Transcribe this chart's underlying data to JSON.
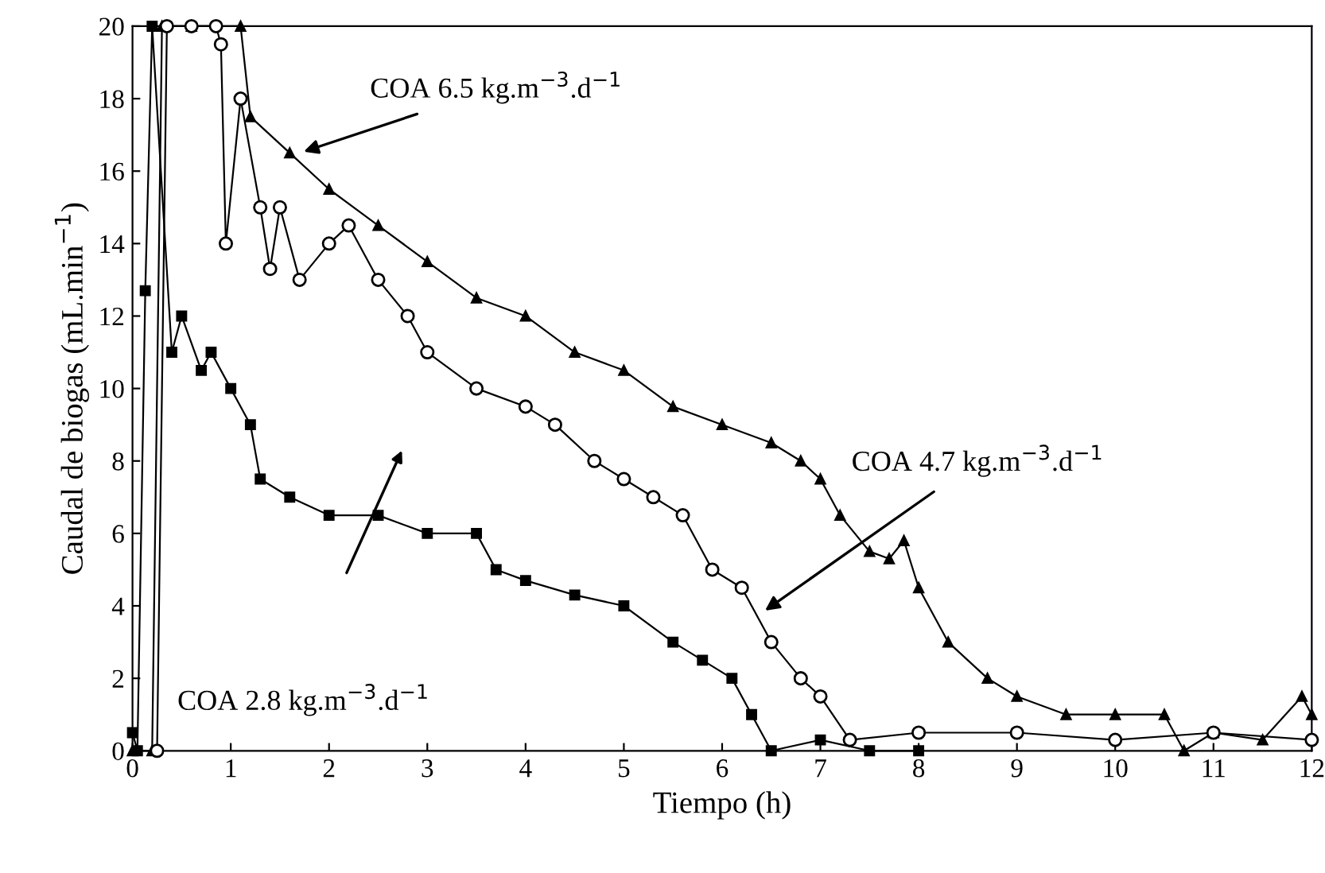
{
  "chart_data": {
    "type": "line",
    "xlabel": "Tiempo (h)",
    "ylabel": "Caudal de biogas (mL.min$^{−1}$)",
    "xlim": [
      0,
      12
    ],
    "ylim": [
      0,
      20
    ],
    "xticks": [
      0,
      1,
      2,
      3,
      4,
      5,
      6,
      7,
      8,
      9,
      10,
      11,
      12
    ],
    "yticks": [
      0,
      2,
      4,
      6,
      8,
      10,
      12,
      14,
      16,
      18,
      20
    ],
    "grid": false,
    "legend": false,
    "line_style": "solid",
    "series": [
      {
        "color": "#000000",
        "marker": "triangle",
        "x": [
          0,
          0.2,
          0.3,
          0.6,
          1.1,
          1.2,
          1.6,
          2,
          2.5,
          3,
          3.5,
          4,
          4.5,
          5,
          5.5,
          6,
          6.5,
          6.8,
          7,
          7.2,
          7.5,
          7.7,
          7.85,
          8,
          8.3,
          8.7,
          9,
          9.5,
          10,
          10.5,
          10.7,
          11,
          11.5,
          11.9,
          12
        ],
        "values": [
          0,
          0,
          20,
          20,
          20,
          17.5,
          16.5,
          15.5,
          14.5,
          13.5,
          12.5,
          12,
          11,
          10.5,
          9.5,
          9,
          8.5,
          8,
          7.5,
          6.5,
          5.5,
          5.3,
          5.8,
          4.5,
          3,
          2,
          1.5,
          1,
          1,
          1,
          0,
          0.5,
          0.3,
          1.5,
          1
        ]
      },
      {
        "color": "#000000",
        "marker": "circle",
        "x": [
          0.25,
          0.35,
          0.6,
          0.85,
          0.9,
          0.95,
          1.1,
          1.3,
          1.4,
          1.5,
          1.7,
          2,
          2.2,
          2.5,
          2.8,
          3,
          3.5,
          4,
          4.3,
          4.7,
          5,
          5.3,
          5.6,
          5.9,
          6.2,
          6.5,
          6.8,
          7,
          7.3,
          8,
          9,
          10,
          11,
          12
        ],
        "values": [
          0,
          20,
          20,
          20,
          19.5,
          14,
          18,
          15,
          13.3,
          15,
          13,
          14,
          14.5,
          13,
          12,
          11,
          10,
          9.5,
          9,
          8,
          7.5,
          7,
          6.5,
          5,
          4.5,
          3,
          2,
          1.5,
          0.3,
          0.5,
          0.5,
          0.3,
          0.5,
          0.3
        ]
      },
      {
        "color": "#000000",
        "marker": "square",
        "x": [
          0,
          0.05,
          0.13,
          0.2,
          0.4,
          0.5,
          0.7,
          0.8,
          1,
          1.2,
          1.3,
          1.6,
          2,
          2.5,
          3,
          3.5,
          3.7,
          4,
          4.5,
          5,
          5.5,
          5.8,
          6.1,
          6.3,
          6.5,
          7,
          7.5,
          8
        ],
        "values": [
          0.5,
          0,
          12.7,
          20,
          11,
          12,
          10.5,
          11,
          10,
          9,
          7.5,
          7,
          6.5,
          6.5,
          6,
          6,
          5,
          4.7,
          4.3,
          4,
          3,
          2.5,
          2,
          1,
          0,
          0.3,
          0,
          0
        ]
      }
    ],
    "annotations": [
      {
        "text": "COA 6.5 kg.m$^{−3}$.d$^{−1}$",
        "x": 1.7,
        "y": 16.5
      },
      {
        "text": "COA 4.7 kg.m$^{−3}$.d$^{−1}$",
        "x": 6.4,
        "y": 3.8
      },
      "COA 2.8 kg.m$^{−3}$.d$^{−1}$"
    ]
  }
}
